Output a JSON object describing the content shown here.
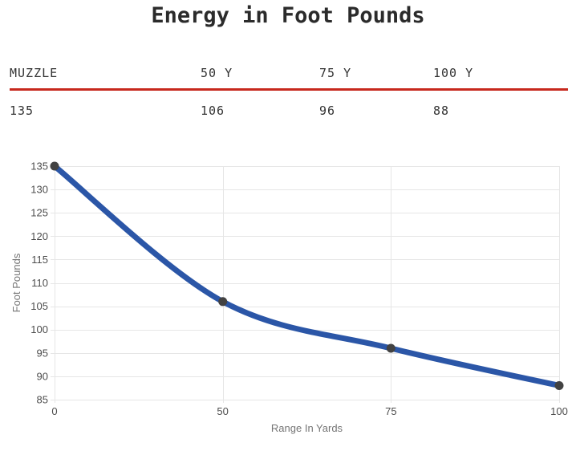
{
  "title": "Energy in Foot Pounds",
  "table": {
    "headers": [
      "MUZZLE",
      "50 Y",
      "75 Y",
      "100 Y"
    ],
    "values": [
      "135",
      "106",
      "96",
      "88"
    ]
  },
  "chart_data": {
    "type": "line",
    "categories": [
      "0",
      "50",
      "75",
      "100"
    ],
    "series": [
      {
        "name": "Foot Pounds",
        "values": [
          135,
          106,
          96,
          88
        ]
      }
    ],
    "title": "Energy in Foot Pounds",
    "xlabel": "Range In Yards",
    "ylabel": "Foot Pounds",
    "ylim": [
      85,
      135
    ],
    "ytick_step": 5,
    "grid": true,
    "legend_position": "none",
    "smooth": true,
    "colors": {
      "line": "#2b56a7",
      "marker": "#424242",
      "grid": "#e6e6e6",
      "tick_label": "#4d4d4d",
      "axis_title": "#757575"
    }
  },
  "accent": {
    "divider_red": "#c7281d"
  }
}
